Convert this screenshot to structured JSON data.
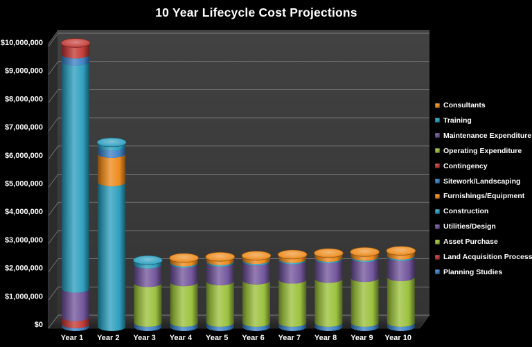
{
  "title": "10 Year Lifecycle Cost Projections",
  "chart_data": {
    "type": "bar",
    "subtype": "3d-stacked-cylinder",
    "title": "10 Year Lifecycle Cost Projections",
    "categories": [
      "Year 1",
      "Year 2",
      "Year 3",
      "Year 4",
      "Year 5",
      "Year 6",
      "Year 7",
      "Year 8",
      "Year 9",
      "Year 10"
    ],
    "ylim": [
      0,
      10000000
    ],
    "ytick_step": 1000000,
    "ytick_labels": [
      "$0",
      "$1,000,000",
      "$2,000,000",
      "$3,000,000",
      "$4,000,000",
      "$5,000,000",
      "$6,000,000",
      "$7,000,000",
      "$8,000,000",
      "$9,000,000",
      "$10,000,000"
    ],
    "grid": true,
    "legend_position": "right",
    "stack_note": "Series listed in legend order (top first); stacking order in each bar is the reverse, i.e. Planning Studies at the bottom and Consultants on top.",
    "background": "#000000",
    "wall_color": "#3b3b3b",
    "gridline_color": "#8a8a8a",
    "series": [
      {
        "name": "Consultants",
        "color": "#EE8C1E",
        "values": [
          0,
          0,
          0,
          150000,
          150000,
          150000,
          150000,
          160000,
          160000,
          160000
        ]
      },
      {
        "name": "Training",
        "color": "#2FA0C0",
        "values": [
          0,
          150000,
          150000,
          50000,
          50000,
          50000,
          50000,
          50000,
          50000,
          50000
        ]
      },
      {
        "name": "Maintenance Expenditure",
        "color": "#74589E",
        "values": [
          0,
          0,
          650000,
          650000,
          660000,
          670000,
          680000,
          690000,
          700000,
          710000
        ]
      },
      {
        "name": "Operating Expenditure",
        "color": "#9CC23F",
        "values": [
          0,
          0,
          1400000,
          1430000,
          1460000,
          1490000,
          1520000,
          1550000,
          1580000,
          1610000
        ]
      },
      {
        "name": "Contingency",
        "color": "#C33C38",
        "values": [
          400000,
          0,
          0,
          0,
          0,
          0,
          0,
          0,
          0,
          0
        ]
      },
      {
        "name": "Sitework/Landscaping",
        "color": "#3F83C6",
        "values": [
          250000,
          250000,
          150000,
          150000,
          150000,
          150000,
          150000,
          150000,
          150000,
          150000
        ]
      },
      {
        "name": "Furnishings/Equipment",
        "color": "#EE8C1E",
        "values": [
          0,
          1000000,
          0,
          0,
          0,
          0,
          0,
          0,
          0,
          0
        ]
      },
      {
        "name": "Construction",
        "color": "#2FA0C0",
        "values": [
          8000000,
          5100000,
          0,
          0,
          0,
          0,
          0,
          0,
          0,
          0
        ]
      },
      {
        "name": "Utilities/Design",
        "color": "#74589E",
        "values": [
          1000000,
          0,
          0,
          0,
          0,
          0,
          0,
          0,
          0,
          0
        ]
      },
      {
        "name": "Asset Purchase",
        "color": "#9CC23F",
        "values": [
          0,
          0,
          0,
          0,
          0,
          0,
          0,
          0,
          0,
          0
        ]
      },
      {
        "name": "Land Acquisition Process",
        "color": "#C33C38",
        "values": [
          250000,
          0,
          0,
          0,
          0,
          0,
          0,
          0,
          0,
          0
        ]
      },
      {
        "name": "Planning Studies",
        "color": "#3F83C6",
        "values": [
          100000,
          0,
          0,
          0,
          0,
          0,
          0,
          0,
          0,
          0
        ]
      }
    ]
  }
}
